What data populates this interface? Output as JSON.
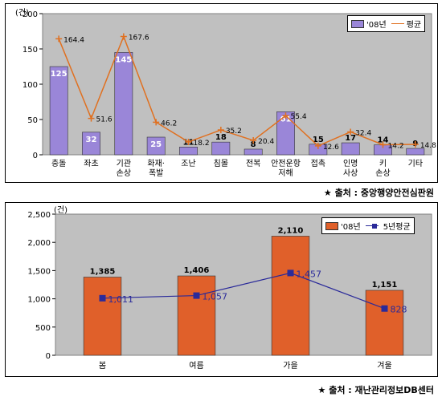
{
  "chart_data": [
    {
      "type": "bar",
      "title": "",
      "ylabel": "(건)",
      "ylim": [
        0,
        200
      ],
      "yticks": [
        0,
        50,
        100,
        150,
        200
      ],
      "categories": [
        "충돌",
        "좌초",
        "기관\n손상",
        "화재·\n폭발",
        "조난",
        "침몰",
        "전복",
        "안전운항\n저해",
        "접촉",
        "인명\n사상",
        "키\n손상",
        "기타"
      ],
      "series": [
        {
          "name": "'08년",
          "kind": "bar",
          "color": "#9a86d8",
          "values": [
            125,
            32,
            145,
            25,
            11,
            18,
            8,
            61,
            15,
            17,
            14,
            9
          ]
        },
        {
          "name": "평균",
          "kind": "line",
          "color": "#e07020",
          "values": [
            164.4,
            51.6,
            167.6,
            46.2,
            18.2,
            35.2,
            20.4,
            55.4,
            12.6,
            32.4,
            14.2,
            14.8
          ]
        }
      ],
      "legend_position": "top-right",
      "background": "#c0c0c0"
    },
    {
      "type": "bar",
      "title": "",
      "ylabel": "(건)",
      "ylim": [
        0,
        2500
      ],
      "yticks": [
        "0",
        "500",
        "1,000",
        "1,500",
        "2,000",
        "2,500"
      ],
      "ytick_values": [
        0,
        500,
        1000,
        1500,
        2000,
        2500
      ],
      "categories": [
        "봄",
        "여름",
        "가을",
        "겨울"
      ],
      "series": [
        {
          "name": "'08년",
          "kind": "bar",
          "color": "#e0602a",
          "values": [
            1385,
            1406,
            2110,
            1151
          ],
          "labels": [
            "1,385",
            "1,406",
            "2,110",
            "1,151"
          ]
        },
        {
          "name": "5년평균",
          "kind": "line",
          "color": "#2a2a9a",
          "values": [
            1011,
            1057,
            1457,
            828
          ],
          "labels": [
            "1,011",
            "1,057",
            "1,457",
            "828"
          ]
        }
      ],
      "legend_position": "top-right",
      "background": "#c0c0c0"
    }
  ],
  "sources": {
    "first": "★ 출처 : 중앙행양안전심판원",
    "second": "★ 출처 : 재난관리정보DB센터"
  }
}
